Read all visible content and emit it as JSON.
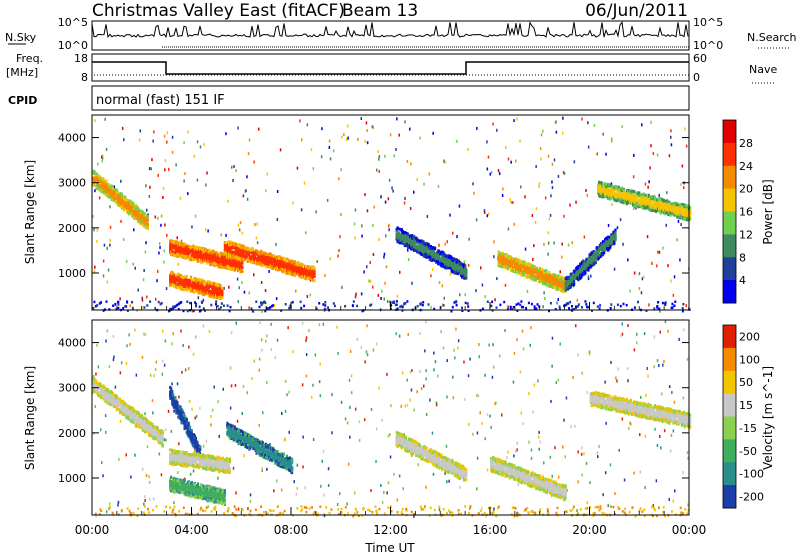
{
  "header": {
    "title": "Christmas Valley East (fitACF)",
    "beam": "Beam 13",
    "date": "06/Jun/2011"
  },
  "ops": {
    "nsky_label": "N.Sky",
    "nsearch_label": "N.Search",
    "nsky_ticks": [
      "10^5",
      "10^0"
    ],
    "nsearch_ticks": [
      "10^5",
      "10^0"
    ],
    "freq_label_1": "Freq.",
    "freq_label_2": "[MHz]",
    "freq_ticks": [
      "18",
      "8"
    ],
    "nave_label": "Nave",
    "nave_ticks": [
      "60",
      "0"
    ],
    "cpid_label": "CPID",
    "cpid_value": "normal (fast) 151 IF"
  },
  "chart_data": [
    {
      "type": "heatmap",
      "name": "power",
      "ylabel": "Slant Range [km]",
      "ylim": [
        180,
        4500
      ],
      "yticks": [
        1000,
        2000,
        3000,
        4000
      ],
      "colorbar_label": "Power [dB]",
      "colorbar_ticks": [
        "4",
        "8",
        "12",
        "16",
        "20",
        "24",
        "28"
      ],
      "colors": [
        "#0000ee",
        "#1f3f9a",
        "#3f8a5f",
        "#6fcf4f",
        "#f5c400",
        "#f58a00",
        "#ff3000",
        "#e00000"
      ],
      "features": [
        {
          "t0": 0.0,
          "t1": 2.2,
          "r0": 3150,
          "r1": 2150,
          "level": 5
        },
        {
          "t0": 3.1,
          "t1": 6.0,
          "r0": 1600,
          "r1": 1200,
          "level": 6
        },
        {
          "t0": 3.1,
          "t1": 5.2,
          "r0": 900,
          "r1": 600,
          "level": 6
        },
        {
          "t0": 5.3,
          "t1": 8.9,
          "r0": 1600,
          "r1": 1000,
          "level": 6
        },
        {
          "t0": 12.2,
          "t1": 15.0,
          "r0": 1900,
          "r1": 1050,
          "level": 2
        },
        {
          "t0": 16.3,
          "t1": 19.0,
          "r0": 1350,
          "r1": 750,
          "level": 5
        },
        {
          "t0": 19.0,
          "t1": 21.0,
          "r0": 750,
          "r1": 1850,
          "level": 2
        },
        {
          "t0": 20.3,
          "t1": 24.0,
          "r0": 2900,
          "r1": 2350,
          "level": 4
        }
      ]
    },
    {
      "type": "heatmap",
      "name": "velocity",
      "ylabel": "Slant Range [km]",
      "ylim": [
        180,
        4500
      ],
      "yticks": [
        1000,
        2000,
        3000,
        4000
      ],
      "colorbar_label": "Velocity [m s^-1]",
      "colorbar_ticks": [
        "200",
        "100",
        "50",
        "15",
        "-15",
        "-50",
        "-100",
        "-200"
      ],
      "colors": [
        "#1a3fa8",
        "#2a8f8a",
        "#3fae5f",
        "#8bd14f",
        "#c8c8c8",
        "#f5c400",
        "#f58a00",
        "#e02000"
      ],
      "features": [
        {
          "t0": 0.0,
          "t1": 2.8,
          "r0": 3100,
          "r1": 1900,
          "level": 4
        },
        {
          "t0": 3.1,
          "t1": 4.3,
          "r0": 2900,
          "r1": 1600,
          "level": 0
        },
        {
          "t0": 3.1,
          "t1": 5.5,
          "r0": 1500,
          "r1": 1300,
          "level": 4
        },
        {
          "t0": 3.1,
          "t1": 5.3,
          "r0": 900,
          "r1": 600,
          "level": 2
        },
        {
          "t0": 5.4,
          "t1": 8.0,
          "r0": 2100,
          "r1": 1300,
          "level": 1
        },
        {
          "t0": 12.2,
          "t1": 15.0,
          "r0": 1900,
          "r1": 1100,
          "level": 4
        },
        {
          "t0": 16.0,
          "t1": 19.0,
          "r0": 1350,
          "r1": 700,
          "level": 4
        },
        {
          "t0": 20.0,
          "t1": 24.0,
          "r0": 2800,
          "r1": 2300,
          "level": 4
        }
      ]
    }
  ],
  "xaxis": {
    "label": "Time UT",
    "ticks": [
      "00:00",
      "04:00",
      "08:00",
      "12:00",
      "16:00",
      "20:00",
      "00:00"
    ],
    "range_hours": [
      0,
      24
    ]
  }
}
